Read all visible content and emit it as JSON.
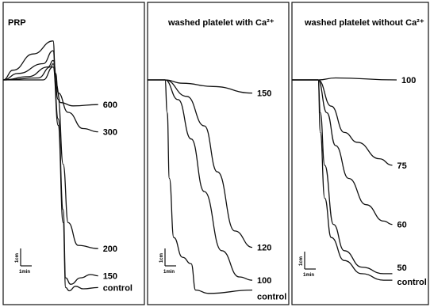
{
  "chart_data": [
    {
      "type": "line",
      "title": "PRP",
      "xlabel": "",
      "ylabel": "",
      "scale_bar": {
        "vertical": "1cm",
        "horizontal": "1min"
      },
      "series": [
        {
          "name": "600",
          "points": [
            [
              0,
              0
            ],
            [
              0.2,
              -0.15
            ],
            [
              0.6,
              -0.4
            ],
            [
              1.0,
              -0.6
            ],
            [
              1.05,
              0.05
            ],
            [
              1.15,
              0.35
            ],
            [
              1.4,
              0.4
            ],
            [
              1.9,
              0.38
            ]
          ]
        },
        {
          "name": "300",
          "points": [
            [
              0,
              0
            ],
            [
              0.3,
              -0.1
            ],
            [
              0.8,
              -0.25
            ],
            [
              1.0,
              -0.45
            ],
            [
              1.05,
              -0.1
            ],
            [
              1.1,
              0.2
            ],
            [
              1.3,
              0.5
            ],
            [
              1.6,
              0.75
            ],
            [
              1.9,
              0.8
            ]
          ]
        },
        {
          "name": "200",
          "points": [
            [
              0,
              0
            ],
            [
              0.5,
              -0.05
            ],
            [
              0.9,
              -0.2
            ],
            [
              1.0,
              -0.3
            ],
            [
              1.1,
              0.3
            ],
            [
              1.2,
              1.3
            ],
            [
              1.3,
              2.2
            ],
            [
              1.5,
              2.55
            ],
            [
              1.9,
              2.6
            ]
          ]
        },
        {
          "name": "150",
          "points": [
            [
              0,
              0
            ],
            [
              0.7,
              -0.03
            ],
            [
              0.95,
              -0.2
            ],
            [
              1.0,
              -0.25
            ],
            [
              1.1,
              0.6
            ],
            [
              1.2,
              2.0
            ],
            [
              1.25,
              3.05
            ],
            [
              1.35,
              3.15
            ],
            [
              1.55,
              3.05
            ],
            [
              1.75,
              3.0
            ],
            [
              1.9,
              3.02
            ]
          ]
        },
        {
          "name": "control",
          "points": [
            [
              0,
              0
            ],
            [
              0.8,
              0
            ],
            [
              1.0,
              -0.2
            ],
            [
              1.1,
              0.7
            ],
            [
              1.2,
              2.2
            ],
            [
              1.25,
              3.2
            ],
            [
              1.32,
              3.25
            ],
            [
              1.45,
              3.18
            ],
            [
              1.6,
              3.22
            ],
            [
              1.9,
              3.2
            ]
          ]
        }
      ]
    },
    {
      "type": "line",
      "title": "washed platelet with Ca²⁺",
      "xlabel": "",
      "ylabel": "",
      "scale_bar": {
        "vertical": "1cm",
        "horizontal": "1min"
      },
      "series": [
        {
          "name": "150",
          "points": [
            [
              0,
              0
            ],
            [
              0.4,
              0
            ],
            [
              0.8,
              0.05
            ],
            [
              1.5,
              0.1
            ],
            [
              2.4,
              0.2
            ]
          ]
        },
        {
          "name": "120",
          "points": [
            [
              0,
              0
            ],
            [
              0.4,
              0
            ],
            [
              0.9,
              0.25
            ],
            [
              1.3,
              0.7
            ],
            [
              1.6,
              1.4
            ],
            [
              2.0,
              2.3
            ],
            [
              2.4,
              2.55
            ]
          ]
        },
        {
          "name": "100",
          "points": [
            [
              0,
              0
            ],
            [
              0.4,
              0
            ],
            [
              0.7,
              0.3
            ],
            [
              1.0,
              0.9
            ],
            [
              1.3,
              1.7
            ],
            [
              1.7,
              2.6
            ],
            [
              2.1,
              3.0
            ],
            [
              2.4,
              3.05
            ]
          ]
        },
        {
          "name": "control",
          "points": [
            [
              0,
              0
            ],
            [
              0.4,
              0
            ],
            [
              0.45,
              0.5
            ],
            [
              0.5,
              1.5
            ],
            [
              0.6,
              2.4
            ],
            [
              0.8,
              2.7
            ],
            [
              1.0,
              2.8
            ],
            [
              1.1,
              3.2
            ],
            [
              1.4,
              3.25
            ],
            [
              2.4,
              3.2
            ]
          ]
        }
      ]
    },
    {
      "type": "line",
      "title": "washed platelet without Ca²⁺",
      "xlabel": "",
      "ylabel": "",
      "scale_bar": {
        "vertical": "1cm",
        "horizontal": "1min"
      },
      "series": [
        {
          "name": "100",
          "points": [
            [
              0,
              0
            ],
            [
              0.6,
              0
            ],
            [
              1.0,
              -0.03
            ],
            [
              2.4,
              0
            ]
          ]
        },
        {
          "name": "75",
          "points": [
            [
              0,
              0
            ],
            [
              0.6,
              0
            ],
            [
              0.9,
              0.4
            ],
            [
              1.2,
              0.8
            ],
            [
              1.5,
              0.95
            ],
            [
              2.0,
              1.2
            ],
            [
              2.3,
              1.3
            ]
          ]
        },
        {
          "name": "60",
          "points": [
            [
              0,
              0
            ],
            [
              0.6,
              0
            ],
            [
              0.8,
              0.5
            ],
            [
              1.0,
              1.0
            ],
            [
              1.3,
              1.5
            ],
            [
              1.7,
              1.9
            ],
            [
              2.1,
              2.15
            ],
            [
              2.3,
              2.2
            ]
          ]
        },
        {
          "name": "50",
          "points": [
            [
              0,
              0
            ],
            [
              0.6,
              0
            ],
            [
              0.65,
              0.5
            ],
            [
              0.75,
              1.3
            ],
            [
              0.95,
              2.2
            ],
            [
              1.2,
              2.6
            ],
            [
              1.6,
              2.85
            ],
            [
              2.1,
              2.95
            ],
            [
              2.3,
              2.95
            ]
          ]
        },
        {
          "name": "control",
          "points": [
            [
              0,
              0
            ],
            [
              0.6,
              0
            ],
            [
              0.65,
              0.8
            ],
            [
              0.75,
              1.8
            ],
            [
              0.9,
              2.4
            ],
            [
              1.2,
              2.75
            ],
            [
              1.6,
              2.95
            ],
            [
              2.1,
              3.05
            ],
            [
              2.3,
              3.05
            ]
          ]
        }
      ]
    }
  ]
}
